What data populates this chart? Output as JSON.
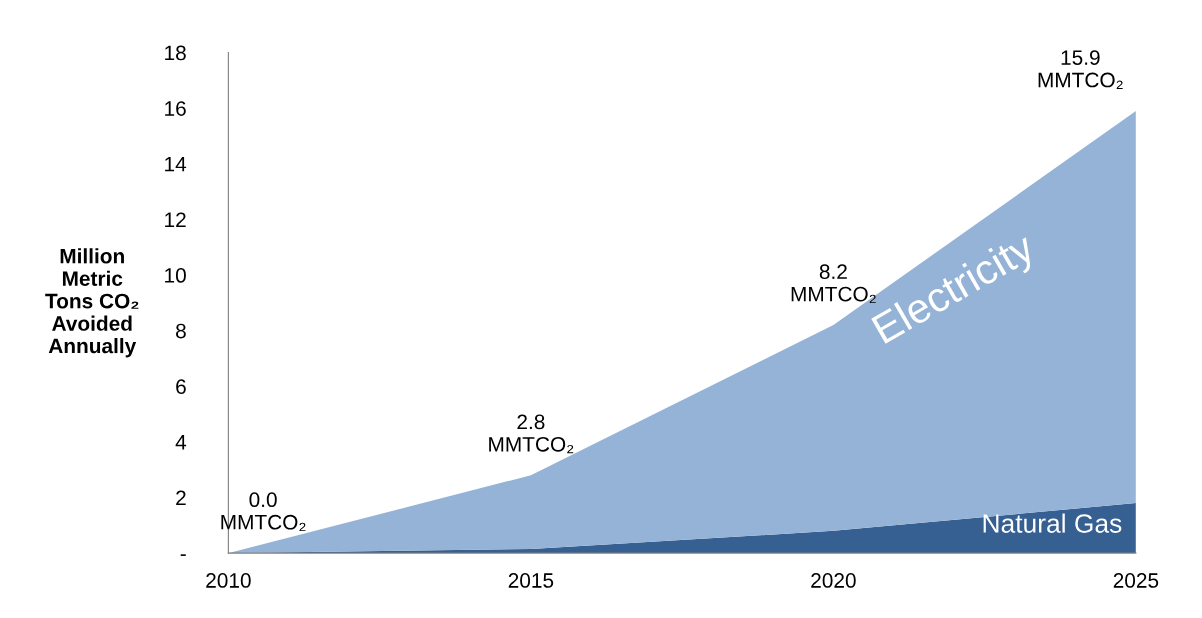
{
  "chart_data": {
    "type": "area",
    "stacked": true,
    "ylabel": "Million Metric Tons CO₂ Avoided Annually",
    "x": [
      2010,
      2015,
      2020,
      2025
    ],
    "xlim": [
      2010,
      2025
    ],
    "xticks": [
      2010,
      2015,
      2020,
      2025
    ],
    "ylim": [
      0,
      18
    ],
    "yticks": [
      {
        "value": 0,
        "label": "-"
      },
      2,
      4,
      6,
      8,
      10,
      12,
      14,
      16,
      18
    ],
    "series": [
      {
        "name": "Natural Gas",
        "color": "#376092",
        "values": [
          0,
          0.15,
          0.8,
          1.8
        ]
      },
      {
        "name": "Electricity",
        "color": "#95b3d7",
        "values": [
          0,
          2.65,
          7.4,
          14.1
        ]
      }
    ],
    "annotations": [
      {
        "text": "0.0\nMMTCO₂",
        "x": 2010,
        "y": 0.0
      },
      {
        "text": "2.8\nMMTCO₂",
        "x": 2015,
        "y": 2.8
      },
      {
        "text": "8.2\nMMTCO₂",
        "x": 2020,
        "y": 8.2
      },
      {
        "text": "15.9\nMMTCO₂",
        "x": 2025,
        "y": 15.9
      }
    ],
    "grid": false,
    "legend": false
  }
}
